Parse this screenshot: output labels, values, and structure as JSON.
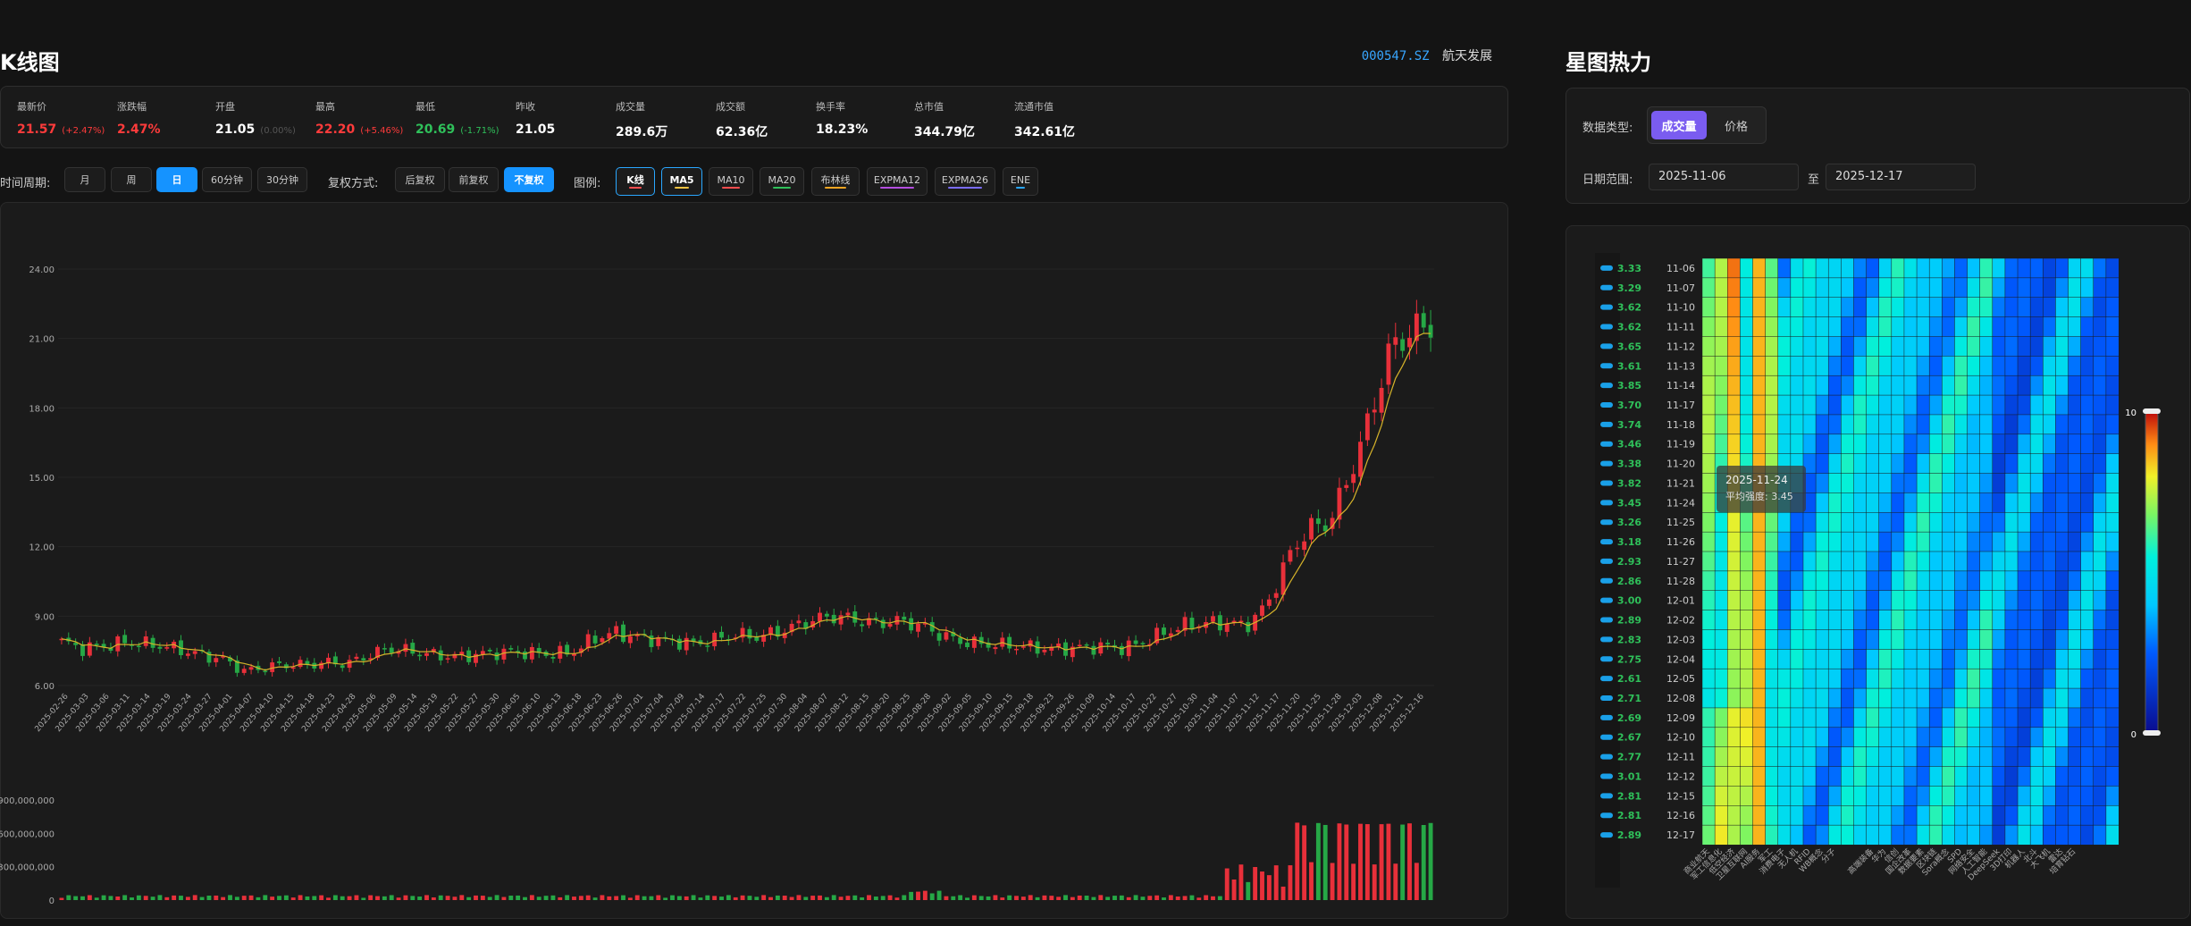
{
  "kline": {
    "title": "K线图",
    "stock_code": "000547.SZ",
    "stock_name": "航天发展",
    "stats": [
      {
        "label": "最新价",
        "value": "21.57",
        "sub": "(+2.47%)",
        "color": "red"
      },
      {
        "label": "涨跌幅",
        "value": "2.47%",
        "sub": "",
        "color": "red"
      },
      {
        "label": "开盘",
        "value": "21.05",
        "sub": "(0.00%)",
        "color": "white"
      },
      {
        "label": "最高",
        "value": "22.20",
        "sub": "(+5.46%)",
        "color": "red"
      },
      {
        "label": "最低",
        "value": "20.69",
        "sub": "(-1.71%)",
        "color": "green"
      },
      {
        "label": "昨收",
        "value": "21.05",
        "sub": "",
        "color": "white"
      },
      {
        "label": "成交量",
        "value": "289.6万",
        "sub": "",
        "color": "white"
      },
      {
        "label": "成交额",
        "value": "62.36亿",
        "sub": "",
        "color": "white"
      },
      {
        "label": "换手率",
        "value": "18.23%",
        "sub": "",
        "color": "white"
      },
      {
        "label": "总市值",
        "value": "344.79亿",
        "sub": "",
        "color": "white"
      },
      {
        "label": "流通市值",
        "value": "342.61亿",
        "sub": "",
        "color": "white"
      }
    ],
    "period_label": "时间周期:",
    "periods": [
      {
        "label": "月",
        "active": false
      },
      {
        "label": "周",
        "active": false
      },
      {
        "label": "日",
        "active": true
      },
      {
        "label": "60分钟",
        "active": false
      },
      {
        "label": "30分钟",
        "active": false
      }
    ],
    "adjust_label": "复权方式:",
    "adjusts": [
      {
        "label": "后复权",
        "active": false
      },
      {
        "label": "前复权",
        "active": false
      },
      {
        "label": "不复权",
        "active": true
      }
    ],
    "legend_label": "图例:",
    "legends": [
      {
        "label": "K线",
        "color": "#ff4d4f",
        "on": true
      },
      {
        "label": "MA5",
        "color": "#f5c242",
        "on": true
      },
      {
        "label": "MA10",
        "color": "#ff4d4f",
        "on": false
      },
      {
        "label": "MA20",
        "color": "#2fc05a",
        "on": false
      },
      {
        "label": "布林线",
        "color": "#f5a623",
        "on": false
      },
      {
        "label": "EXPMA12",
        "color": "#b44ee0",
        "on": false
      },
      {
        "label": "EXPMA26",
        "color": "#7a6cff",
        "on": false
      },
      {
        "label": "ENE",
        "color": "#2aa7ff",
        "on": false
      }
    ],
    "colors": {
      "up": "#e8303a",
      "down": "#26a846",
      "ma5": "#d6b32a"
    }
  },
  "chart_data": [
    {
      "type": "candlestick",
      "title": "K线图",
      "price_ylim": [
        6.0,
        24.0
      ],
      "price_ticks": [
        "6.00",
        "9.00",
        "12.00",
        "15.00",
        "18.00",
        "21.00",
        "24.00"
      ],
      "volume_ticks": [
        "0",
        "300,000,000",
        "600,000,000",
        "900,000,000"
      ],
      "volume_ylim": [
        0,
        900000000
      ],
      "x_tick_labels": [
        "2025-02-26",
        "2025-03-03",
        "2025-03-06",
        "2025-03-11",
        "2025-03-14",
        "2025-03-19",
        "2025-03-24",
        "2025-03-27",
        "2025-04-01",
        "2025-04-07",
        "2025-04-10",
        "2025-04-15",
        "2025-04-18",
        "2025-04-23",
        "2025-04-28",
        "2025-05-06",
        "2025-05-09",
        "2025-05-14",
        "2025-05-19",
        "2025-05-22",
        "2025-05-27",
        "2025-05-30",
        "2025-06-05",
        "2025-06-10",
        "2025-06-13",
        "2025-06-18",
        "2025-06-23",
        "2025-06-26",
        "2025-07-01",
        "2025-07-04",
        "2025-07-09",
        "2025-07-14",
        "2025-07-17",
        "2025-07-22",
        "2025-07-25",
        "2025-07-30",
        "2025-08-04",
        "2025-08-07",
        "2025-08-12",
        "2025-08-15",
        "2025-08-20",
        "2025-08-25",
        "2025-08-28",
        "2025-09-02",
        "2025-09-05",
        "2025-09-10",
        "2025-09-15",
        "2025-09-18",
        "2025-09-23",
        "2025-09-26",
        "2025-10-09",
        "2025-10-14",
        "2025-10-17",
        "2025-10-22",
        "2025-10-27",
        "2025-10-30",
        "2025-11-04",
        "2025-11-07",
        "2025-11-12",
        "2025-11-17",
        "2025-11-20",
        "2025-11-25",
        "2025-11-28",
        "2025-12-03",
        "2025-12-08",
        "2025-12-11",
        "2025-12-16"
      ],
      "close_keypoints": [
        7.9,
        7.6,
        7.7,
        7.85,
        7.8,
        7.7,
        7.5,
        7.3,
        7.1,
        6.6,
        6.8,
        6.9,
        6.9,
        7.0,
        6.95,
        7.3,
        7.6,
        7.5,
        7.35,
        7.25,
        7.3,
        7.4,
        7.45,
        7.4,
        7.35,
        7.45,
        8.0,
        8.3,
        8.1,
        8.0,
        7.9,
        7.8,
        8.0,
        8.2,
        8.1,
        8.3,
        8.6,
        8.9,
        9.0,
        8.8,
        8.7,
        8.8,
        8.6,
        8.2,
        7.9,
        7.8,
        7.75,
        7.7,
        7.6,
        7.6,
        7.65,
        7.7,
        7.6,
        7.9,
        8.3,
        8.6,
        8.7,
        8.7,
        8.6,
        9.5,
        11.5,
        12.8,
        13.0,
        15.0,
        17.5,
        20.5,
        21.3,
        21.6
      ],
      "series": [
        {
          "name": "MA5"
        }
      ]
    },
    {
      "type": "heatmap",
      "title": "星图热力",
      "data_type_label": "数据类型:",
      "data_types": [
        {
          "label": "成交量",
          "on": true
        },
        {
          "label": "价格",
          "on": false
        }
      ],
      "date_range_label": "日期范围:",
      "date_from": "2025-11-06",
      "date_sep": "至",
      "date_to": "2025-12-17",
      "rows": [
        "11-06",
        "11-07",
        "11-10",
        "11-11",
        "11-12",
        "11-13",
        "11-14",
        "11-17",
        "11-18",
        "11-19",
        "11-20",
        "11-21",
        "11-24",
        "11-25",
        "11-26",
        "11-27",
        "11-28",
        "12-01",
        "12-02",
        "12-03",
        "12-04",
        "12-05",
        "12-08",
        "12-09",
        "12-10",
        "12-11",
        "12-12",
        "12-15",
        "12-16",
        "12-17"
      ],
      "row_values": [
        "3.33",
        "3.29",
        "3.62",
        "3.62",
        "3.65",
        "3.61",
        "3.85",
        "3.70",
        "3.74",
        "3.46",
        "3.38",
        "3.82",
        "3.45",
        "3.26",
        "3.18",
        "2.93",
        "2.86",
        "3.00",
        "2.89",
        "2.83",
        "2.75",
        "2.61",
        "2.71",
        "2.69",
        "2.67",
        "2.77",
        "3.01",
        "2.81",
        "2.81",
        "2.89"
      ],
      "columns_visible": [
        "商业航天",
        "军工信息化",
        "低空经济",
        "卫星互联网",
        "AI服务",
        "军工",
        "消费电子",
        "无人机",
        "RFID",
        "WB概念",
        "分子",
        "",
        " ",
        "高端装备",
        "华为",
        "信创",
        "国企改革",
        "数据要素",
        "区块链",
        "Sora概念",
        "SPD",
        "网络安全",
        "人工智能",
        "DeepSeek",
        "3D打印",
        "机器人",
        "北斗",
        "大飞机",
        "雷达",
        "培育钻石"
      ],
      "n_cols": 33,
      "scale_max": "10",
      "scale_min": "0",
      "tooltip": {
        "title": "2025-11-24",
        "text": "平均强度: 3.45"
      }
    }
  ]
}
